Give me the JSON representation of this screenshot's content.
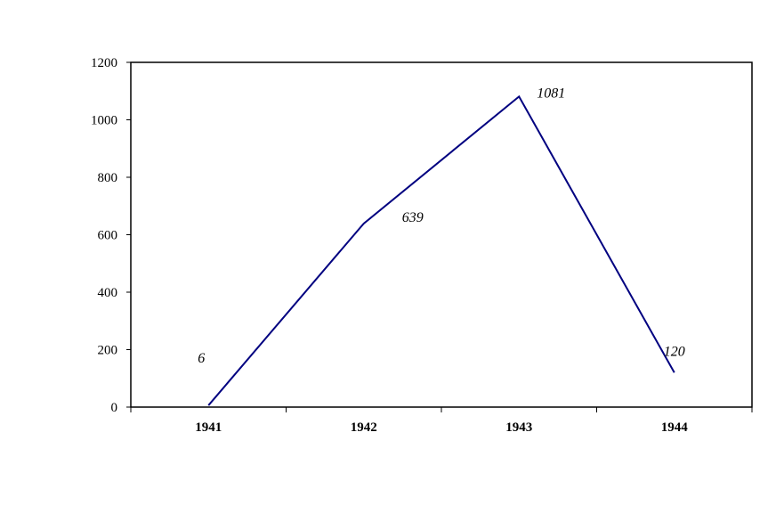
{
  "chart_data": {
    "type": "line",
    "title": "",
    "xlabel": "",
    "ylabel": "",
    "categories": [
      "1941",
      "1942",
      "1943",
      "1944"
    ],
    "series": [
      {
        "values": [
          6,
          639,
          1081,
          120
        ],
        "data_labels": [
          "6",
          "639",
          "1081",
          "120"
        ],
        "color": "#000080"
      }
    ],
    "ylim": [
      0,
      1200
    ],
    "yticks": [
      0,
      200,
      400,
      600,
      800,
      1000,
      1200
    ],
    "ytick_labels": [
      "0",
      "200",
      "400",
      "600",
      "800",
      "1000",
      "1200"
    ],
    "grid": false,
    "legend": "none"
  }
}
